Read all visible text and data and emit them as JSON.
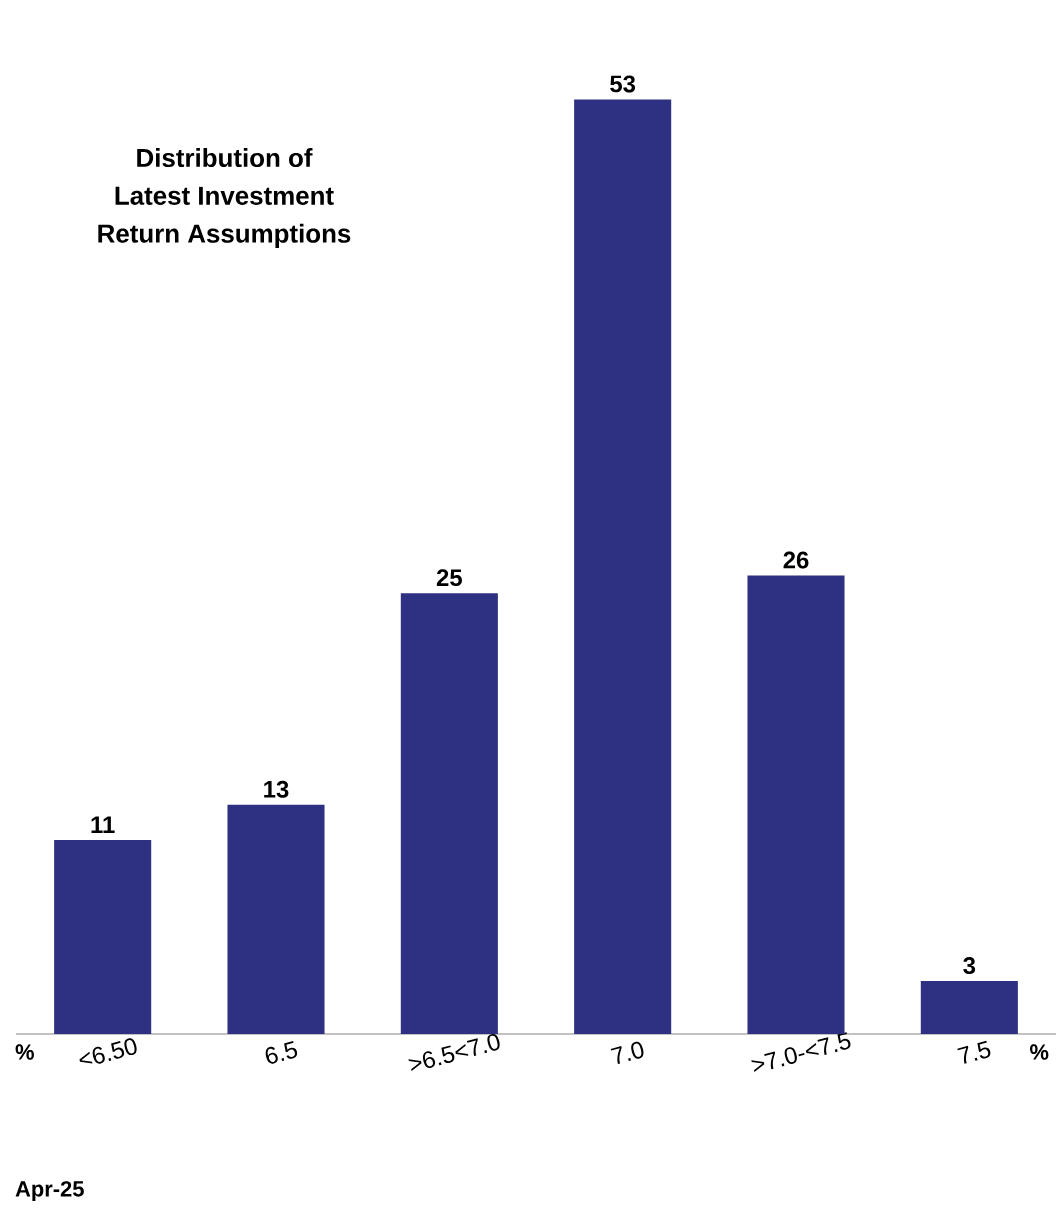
{
  "chart_data": {
    "type": "bar",
    "title": "Distribution of\nLatest Investment\nReturn Assumptions",
    "categories": [
      "<6.50",
      "6.5",
      ">6.5<7.0",
      "7.0",
      ">7.0-<7.5",
      "7.5"
    ],
    "values": [
      11,
      13,
      25,
      53,
      26,
      3
    ],
    "color": "#2e3182",
    "data_labels": true,
    "annotations": [
      "%",
      "%",
      "Apr-25"
    ]
  }
}
